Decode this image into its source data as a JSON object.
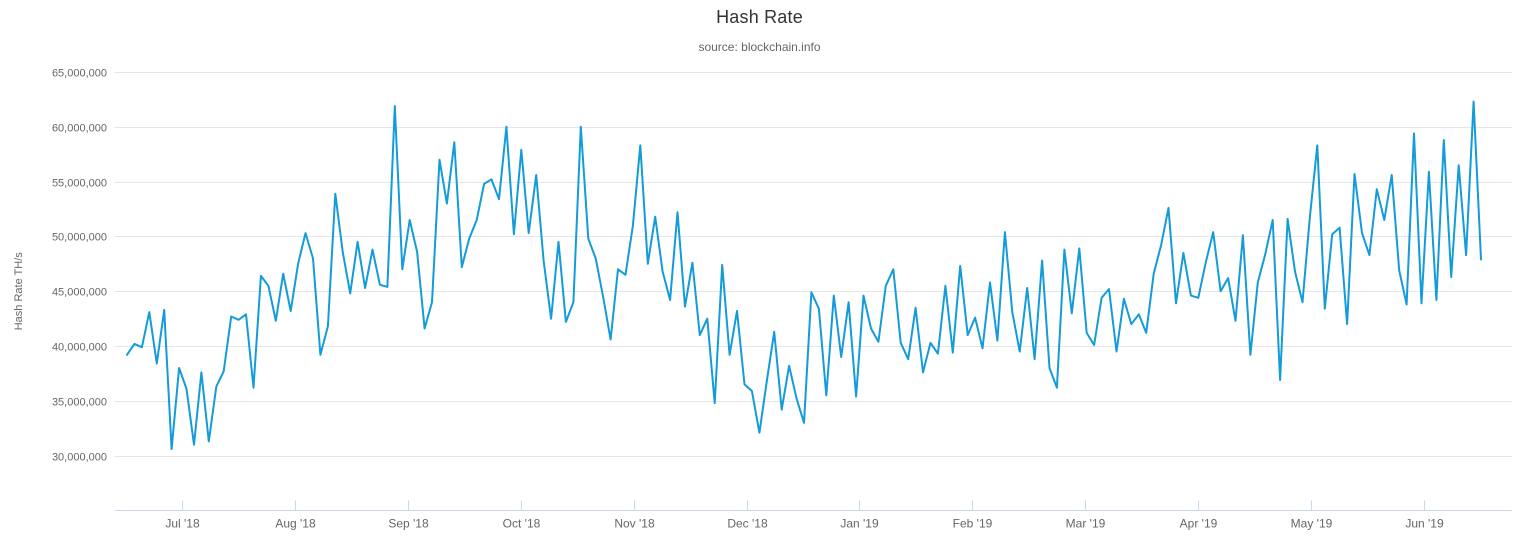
{
  "chart": {
    "title": "Hash Rate",
    "subtitle": "source: blockchain.info",
    "y_axis_title": "Hash Rate TH/s",
    "colors": {
      "line": "#149bd9",
      "grid": "#e6e6e6",
      "axis": "#ccd6eb",
      "tick_text": "#666666",
      "title_text": "#333333",
      "subtitle_text": "#666666",
      "background": "#ffffff"
    }
  },
  "chart_data": {
    "type": "line",
    "series_name": "Hash Rate",
    "unit": "TH/s",
    "title": "Hash Rate",
    "subtitle": "source: blockchain.info",
    "ylabel": "Hash Rate TH/s",
    "start_date": "2018-06-17",
    "end_date": "2019-06-16",
    "interval_days": 2,
    "value_scale": 1000000,
    "ylim": [
      25000000,
      65000000
    ],
    "grid": "horizontal-only",
    "legend": "none",
    "y_ticks": [
      30000000,
      35000000,
      40000000,
      45000000,
      50000000,
      55000000,
      60000000,
      65000000
    ],
    "x_tick_labels": [
      "Jul '18",
      "Aug '18",
      "Sep '18",
      "Oct '18",
      "Nov '18",
      "Dec '18",
      "Jan '19",
      "Feb '19",
      "Mar '19",
      "Apr '19",
      "May '19",
      "Jun '19"
    ],
    "values_in_millions": [
      39.2,
      40.2,
      39.9,
      43.1,
      38.4,
      43.3,
      30.6,
      38.0,
      36.1,
      31.0,
      37.6,
      31.3,
      36.3,
      37.7,
      42.7,
      42.4,
      42.9,
      36.2,
      46.4,
      45.5,
      42.3,
      46.6,
      43.2,
      47.5,
      50.3,
      48.0,
      39.2,
      41.8,
      53.9,
      48.6,
      44.8,
      49.5,
      45.3,
      48.8,
      45.6,
      45.4,
      61.9,
      47.0,
      51.5,
      48.6,
      41.6,
      44.0,
      57.0,
      53.0,
      58.6,
      47.2,
      49.8,
      51.5,
      54.8,
      55.2,
      53.4,
      60.0,
      50.2,
      57.9,
      50.3,
      55.6,
      47.8,
      42.5,
      49.5,
      42.2,
      44.0,
      60.0,
      49.8,
      48.0,
      44.5,
      40.6,
      47.0,
      46.5,
      51.0,
      58.3,
      47.5,
      51.8,
      46.8,
      44.2,
      52.2,
      43.6,
      47.6,
      41.0,
      42.5,
      34.8,
      47.4,
      39.2,
      43.2,
      36.5,
      35.9,
      32.1,
      36.8,
      41.3,
      34.2,
      38.2,
      35.2,
      33.0,
      44.9,
      43.4,
      35.5,
      44.6,
      39.0,
      44.0,
      35.4,
      44.6,
      41.6,
      40.4,
      45.5,
      47.0,
      40.3,
      38.8,
      43.5,
      37.6,
      40.3,
      39.3,
      45.5,
      39.4,
      47.3,
      41.0,
      42.6,
      39.8,
      45.8,
      40.5,
      50.4,
      43.1,
      39.5,
      45.3,
      38.8,
      47.8,
      38.0,
      36.2,
      48.8,
      43.0,
      48.9,
      41.2,
      40.1,
      44.4,
      45.2,
      39.5,
      44.3,
      42.0,
      42.9,
      41.2,
      46.6,
      49.2,
      52.6,
      43.9,
      48.5,
      44.6,
      44.4,
      47.6,
      50.4,
      45.0,
      46.2,
      42.3,
      50.1,
      39.2,
      45.8,
      48.4,
      51.5,
      36.9,
      51.6,
      46.8,
      44.0,
      51.8,
      58.3,
      43.4,
      50.2,
      50.8,
      42.0,
      55.7,
      50.3,
      48.3,
      54.3,
      51.5,
      55.6,
      46.9,
      43.8,
      59.4,
      43.9,
      55.9,
      44.2,
      58.8,
      46.3,
      56.5,
      48.3,
      62.3,
      47.9
    ]
  }
}
